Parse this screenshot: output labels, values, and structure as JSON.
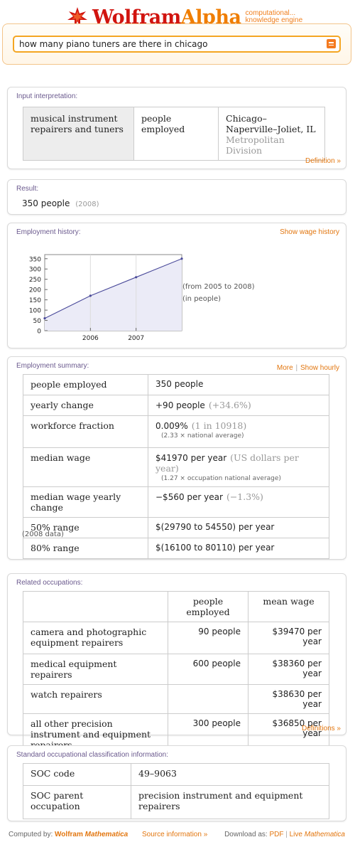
{
  "header": {
    "logo_wolfram": "Wolfram",
    "logo_alpha": "Alpha",
    "tagline_1": "computational...",
    "tagline_2": "knowledge engine",
    "query": "how many piano tuners are there in chicago"
  },
  "input_interpretation": {
    "title": "Input interpretation:",
    "cells": [
      "musical instrument repairers and tuners",
      "people employed",
      "Chicago–Naperville–Joliet, IL"
    ],
    "cell3_sub": "Metropolitan Division",
    "link": "Definition »"
  },
  "result": {
    "title": "Result:",
    "value": "350 people",
    "year": "(2008)"
  },
  "employment_history": {
    "title": "Employment history:",
    "link": "Show wage history",
    "note1": "(from 2005 to 2008)",
    "note2": "(in people)"
  },
  "chart_data": {
    "type": "area",
    "x": [
      2005,
      2006,
      2007,
      2008
    ],
    "series": [
      {
        "values": [
          60,
          170,
          260,
          350
        ]
      }
    ],
    "yticks": [
      0,
      50,
      100,
      150,
      200,
      250,
      300,
      350
    ],
    "xticks": [
      "2006",
      "2007"
    ],
    "ylim": [
      0,
      370
    ],
    "grid": true
  },
  "employment_summary": {
    "title": "Employment summary:",
    "link_more": "More",
    "link_sep": "|",
    "link_hourly": "Show hourly",
    "rows": [
      {
        "label": "people employed",
        "value": "350 people",
        "extra": "",
        "sub": ""
      },
      {
        "label": "yearly change",
        "value": "+90 people",
        "extra": "(+34.6%)",
        "sub": ""
      },
      {
        "label": "workforce fraction",
        "value": "0.009%",
        "extra": "(1 in 10918)",
        "sub": "(2.33 × national average)"
      },
      {
        "label": "median wage",
        "value": "$41970 per year",
        "extra": "(US dollars per year)",
        "sub": "(1.27 × occupation national average)"
      },
      {
        "label": "median wage yearly change",
        "value": "−$560 per year",
        "extra": "(−1.3%)",
        "sub": ""
      },
      {
        "label": "50% range",
        "value": "$(29790 to 54550) per year",
        "extra": "",
        "sub": ""
      },
      {
        "label": "80% range",
        "value": "$(16100 to 80110) per year",
        "extra": "",
        "sub": ""
      }
    ],
    "note": "(2008 data)"
  },
  "related": {
    "title": "Related occupations:",
    "headers": [
      "",
      "people employed",
      "mean wage"
    ],
    "rows": [
      {
        "name": "camera and photographic equipment repairers",
        "employed": "90 people",
        "wage": "$39470 per year"
      },
      {
        "name": "medical equipment repairers",
        "employed": "600 people",
        "wage": "$38360 per year"
      },
      {
        "name": "watch repairers",
        "employed": "",
        "wage": "$38630 per year"
      },
      {
        "name": "all other precision instrument and equipment repairers",
        "employed": "300 people",
        "wage": "$36850 per year"
      }
    ],
    "link": "Definitions »"
  },
  "soc": {
    "title": "Standard occupational classification information:",
    "rows": [
      {
        "label": "SOC code",
        "value": "49–9063"
      },
      {
        "label": "SOC parent occupation",
        "value": "precision instrument and equipment repairers"
      }
    ]
  },
  "footer": {
    "computed_by": "Computed by:",
    "computed_brand": "Wolfram",
    "computed_brand2": "Mathematica",
    "source": "Source information »",
    "download": "Download as:",
    "pdf": "PDF",
    "sep": "|",
    "live": "Live",
    "live2": "Mathematica"
  }
}
